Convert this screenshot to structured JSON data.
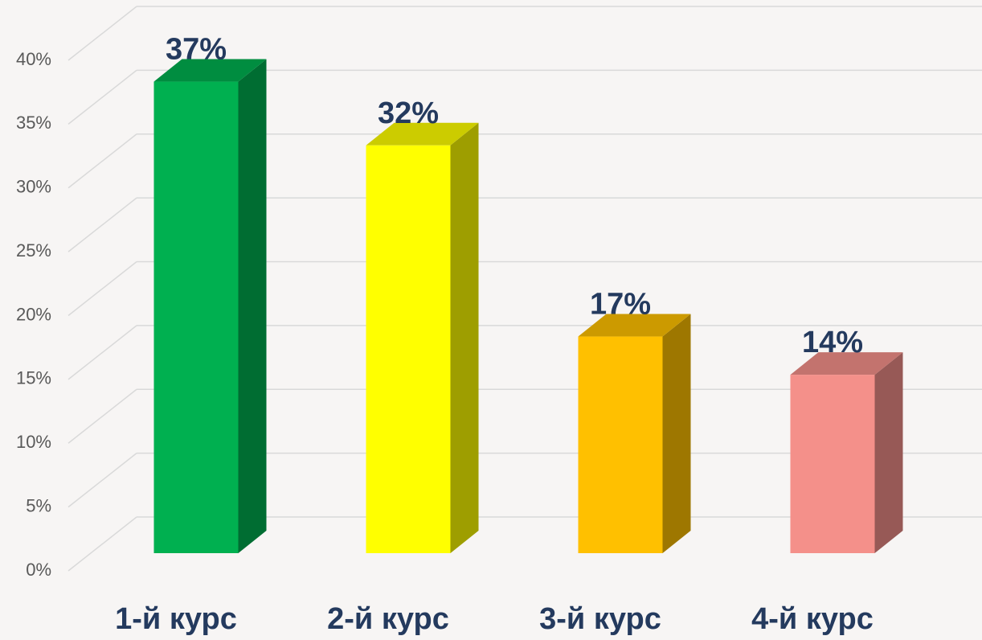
{
  "chart_data": {
    "type": "bar",
    "categories": [
      "1-й курс",
      "2-й курс",
      "3-й курс",
      "4-й курс"
    ],
    "values": [
      37,
      32,
      17,
      14
    ],
    "value_labels": [
      "37%",
      "32%",
      "17%",
      "14%"
    ],
    "colors": [
      "#00b050",
      "#ffff00",
      "#ffc000",
      "#f4908a"
    ],
    "ylim": [
      0,
      40
    ],
    "yticks": [
      {
        "value": 0,
        "label": "0%"
      },
      {
        "value": 5,
        "label": "5%"
      },
      {
        "value": 10,
        "label": "10%"
      },
      {
        "value": 15,
        "label": "15%"
      },
      {
        "value": 20,
        "label": "20%"
      },
      {
        "value": 25,
        "label": "25%"
      },
      {
        "value": 30,
        "label": "30%"
      },
      {
        "value": 35,
        "label": "35%"
      },
      {
        "value": 40,
        "label": "40%"
      }
    ],
    "grid": true
  }
}
